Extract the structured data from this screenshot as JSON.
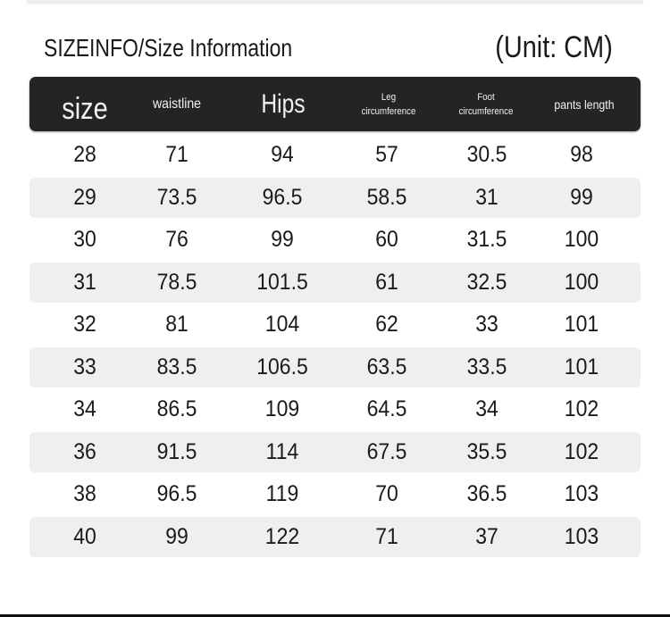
{
  "title": "SIZEINFO/Size Information",
  "unit": "(Unit: CM)",
  "columns": [
    "size",
    "waistline",
    "Hips",
    "Leg circumference",
    "Foot circumference",
    "pants length"
  ],
  "header": {
    "size": "size",
    "waistline": "waistline",
    "hips": "Hips",
    "leg_1": "Leg",
    "leg_2": "circumference",
    "foot_1": "Foot",
    "foot_2": "circumference",
    "pants_length": "pants length"
  },
  "rows": [
    [
      "28",
      "71",
      "94",
      "57",
      "30.5",
      "98"
    ],
    [
      "29",
      "73.5",
      "96.5",
      "58.5",
      "31",
      "99"
    ],
    [
      "30",
      "76",
      "99",
      "60",
      "31.5",
      "100"
    ],
    [
      "31",
      "78.5",
      "101.5",
      "61",
      "32.5",
      "100"
    ],
    [
      "32",
      "81",
      "104",
      "62",
      "33",
      "101"
    ],
    [
      "33",
      "83.5",
      "106.5",
      "63.5",
      "33.5",
      "101"
    ],
    [
      "34",
      "86.5",
      "109",
      "64.5",
      "34",
      "102"
    ],
    [
      "36",
      "91.5",
      "114",
      "67.5",
      "35.5",
      "102"
    ],
    [
      "38",
      "96.5",
      "119",
      "70",
      "36.5",
      "103"
    ],
    [
      "40",
      "99",
      "122",
      "71",
      "37",
      "103"
    ]
  ],
  "colors": {
    "header_bg": "#242424",
    "stripe": "#efefef"
  }
}
